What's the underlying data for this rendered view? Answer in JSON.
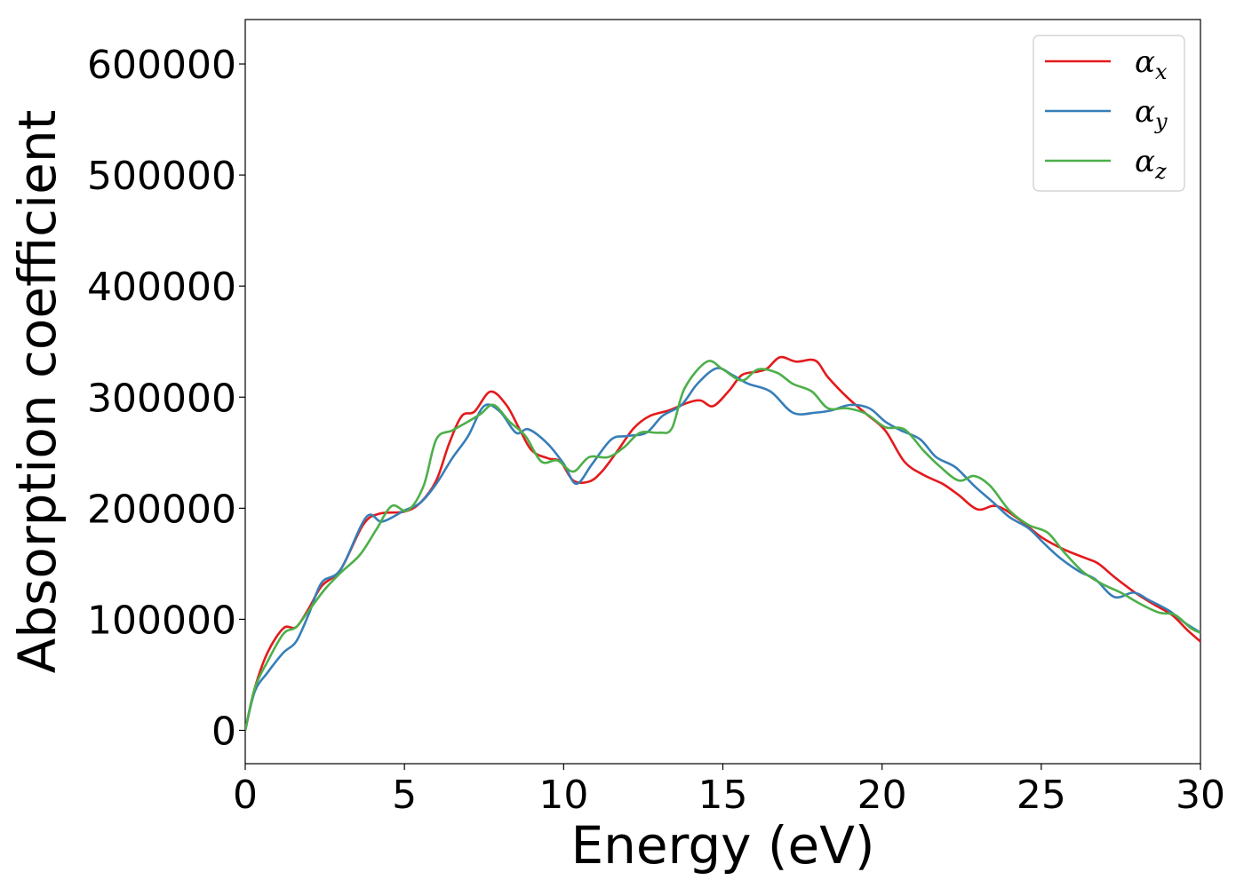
{
  "chart_data": {
    "type": "line",
    "xlabel": "Energy (eV)",
    "ylabel": "Absorption coefficient",
    "xlim": [
      0,
      30
    ],
    "ylim": [
      -30000,
      640000
    ],
    "xticks": [
      "0",
      "5",
      "10",
      "15",
      "20",
      "25",
      "30"
    ],
    "yticks": [
      "0",
      "100000",
      "200000",
      "300000",
      "400000",
      "500000",
      "600000"
    ],
    "grid": false,
    "legend_position": "top-right",
    "series": [
      {
        "name": "α",
        "name_sub": "x",
        "color": "#e41a1c",
        "points": [
          [
            0,
            0
          ],
          [
            0.3,
            38000
          ],
          [
            0.7,
            70000
          ],
          [
            1.2,
            92000
          ],
          [
            1.6,
            93000
          ],
          [
            2,
            110000
          ],
          [
            2.4,
            130000
          ],
          [
            3,
            145000
          ],
          [
            3.7,
            185000
          ],
          [
            4.2,
            195000
          ],
          [
            5,
            197000
          ],
          [
            5.5,
            205000
          ],
          [
            6,
            225000
          ],
          [
            6.4,
            258000
          ],
          [
            6.8,
            283000
          ],
          [
            7.2,
            287000
          ],
          [
            7.7,
            305000
          ],
          [
            8.2,
            293000
          ],
          [
            8.6,
            272000
          ],
          [
            9,
            252000
          ],
          [
            9.5,
            245000
          ],
          [
            9.9,
            242000
          ],
          [
            10.3,
            225000
          ],
          [
            10.8,
            224000
          ],
          [
            11.2,
            233000
          ],
          [
            11.7,
            252000
          ],
          [
            12.2,
            272000
          ],
          [
            12.7,
            283000
          ],
          [
            13.3,
            288000
          ],
          [
            13.9,
            295000
          ],
          [
            14.3,
            297000
          ],
          [
            14.7,
            292000
          ],
          [
            15.2,
            306000
          ],
          [
            15.6,
            320000
          ],
          [
            16.1,
            323000
          ],
          [
            16.4,
            326000
          ],
          [
            16.8,
            336000
          ],
          [
            17.3,
            332000
          ],
          [
            17.9,
            333000
          ],
          [
            18.3,
            318000
          ],
          [
            18.9,
            300000
          ],
          [
            19.5,
            285000
          ],
          [
            20.1,
            270000
          ],
          [
            20.7,
            242000
          ],
          [
            21.3,
            230000
          ],
          [
            21.9,
            222000
          ],
          [
            22.4,
            212000
          ],
          [
            23,
            199000
          ],
          [
            23.6,
            202000
          ],
          [
            24.3,
            190000
          ],
          [
            25,
            174000
          ],
          [
            25.7,
            163000
          ],
          [
            26.4,
            155000
          ],
          [
            26.8,
            150000
          ],
          [
            27.3,
            138000
          ],
          [
            27.9,
            125000
          ],
          [
            28.5,
            114000
          ],
          [
            29.1,
            104000
          ],
          [
            29.6,
            90000
          ],
          [
            30,
            80000
          ]
        ]
      },
      {
        "name": "α",
        "name_sub": "y",
        "color": "#377eb8",
        "points": [
          [
            0,
            0
          ],
          [
            0.3,
            35000
          ],
          [
            0.7,
            52000
          ],
          [
            1.2,
            70000
          ],
          [
            1.6,
            80000
          ],
          [
            2,
            105000
          ],
          [
            2.4,
            133000
          ],
          [
            3,
            145000
          ],
          [
            3.8,
            192000
          ],
          [
            4.3,
            188000
          ],
          [
            5,
            198000
          ],
          [
            5.5,
            205000
          ],
          [
            6,
            222000
          ],
          [
            6.5,
            245000
          ],
          [
            7,
            265000
          ],
          [
            7.5,
            292000
          ],
          [
            8,
            287000
          ],
          [
            8.5,
            268000
          ],
          [
            8.9,
            271000
          ],
          [
            9.5,
            258000
          ],
          [
            10,
            240000
          ],
          [
            10.4,
            222000
          ],
          [
            10.9,
            240000
          ],
          [
            11.5,
            262000
          ],
          [
            12,
            265000
          ],
          [
            12.6,
            268000
          ],
          [
            13.1,
            283000
          ],
          [
            13.7,
            293000
          ],
          [
            14.2,
            312000
          ],
          [
            14.8,
            326000
          ],
          [
            15.3,
            320000
          ],
          [
            15.8,
            312000
          ],
          [
            16.5,
            305000
          ],
          [
            17.2,
            286000
          ],
          [
            17.9,
            286000
          ],
          [
            18.4,
            288000
          ],
          [
            19,
            293000
          ],
          [
            19.6,
            290000
          ],
          [
            20.1,
            278000
          ],
          [
            20.6,
            270000
          ],
          [
            21.2,
            262000
          ],
          [
            21.7,
            246000
          ],
          [
            22.3,
            237000
          ],
          [
            22.9,
            220000
          ],
          [
            23.5,
            205000
          ],
          [
            24,
            192000
          ],
          [
            24.6,
            182000
          ],
          [
            25.1,
            168000
          ],
          [
            25.6,
            155000
          ],
          [
            26.2,
            143000
          ],
          [
            26.7,
            136000
          ],
          [
            27.3,
            120000
          ],
          [
            27.9,
            124000
          ],
          [
            28.4,
            117000
          ],
          [
            29,
            108000
          ],
          [
            29.5,
            97000
          ],
          [
            30,
            88000
          ]
        ]
      },
      {
        "name": "α",
        "name_sub": "z",
        "color": "#4daf4a",
        "points": [
          [
            0,
            0
          ],
          [
            0.3,
            38000
          ],
          [
            0.7,
            62000
          ],
          [
            1.2,
            87000
          ],
          [
            1.6,
            93000
          ],
          [
            2,
            108000
          ],
          [
            2.5,
            127000
          ],
          [
            3,
            142000
          ],
          [
            3.6,
            158000
          ],
          [
            4.1,
            180000
          ],
          [
            4.6,
            202000
          ],
          [
            5.1,
            198000
          ],
          [
            5.6,
            220000
          ],
          [
            6,
            262000
          ],
          [
            6.5,
            270000
          ],
          [
            7,
            278000
          ],
          [
            7.4,
            285000
          ],
          [
            7.8,
            293000
          ],
          [
            8.3,
            278000
          ],
          [
            8.8,
            265000
          ],
          [
            9.3,
            242000
          ],
          [
            9.8,
            243000
          ],
          [
            10.3,
            233000
          ],
          [
            10.8,
            246000
          ],
          [
            11.4,
            246000
          ],
          [
            11.9,
            255000
          ],
          [
            12.4,
            268000
          ],
          [
            13,
            268000
          ],
          [
            13.4,
            272000
          ],
          [
            13.8,
            308000
          ],
          [
            14.5,
            332000
          ],
          [
            15,
            325000
          ],
          [
            15.6,
            315000
          ],
          [
            16.1,
            325000
          ],
          [
            16.7,
            322000
          ],
          [
            17.2,
            312000
          ],
          [
            17.8,
            305000
          ],
          [
            18.3,
            290000
          ],
          [
            18.9,
            290000
          ],
          [
            19.5,
            285000
          ],
          [
            20.1,
            273000
          ],
          [
            20.7,
            271000
          ],
          [
            21.3,
            252000
          ],
          [
            21.8,
            238000
          ],
          [
            22.4,
            225000
          ],
          [
            22.9,
            229000
          ],
          [
            23.4,
            220000
          ],
          [
            24,
            198000
          ],
          [
            24.6,
            185000
          ],
          [
            25.2,
            178000
          ],
          [
            25.7,
            161000
          ],
          [
            26.3,
            143000
          ],
          [
            26.9,
            132000
          ],
          [
            27.5,
            124000
          ],
          [
            28.1,
            114000
          ],
          [
            28.7,
            106000
          ],
          [
            29.2,
            104000
          ],
          [
            29.7,
            92000
          ],
          [
            30,
            88000
          ]
        ]
      }
    ]
  }
}
